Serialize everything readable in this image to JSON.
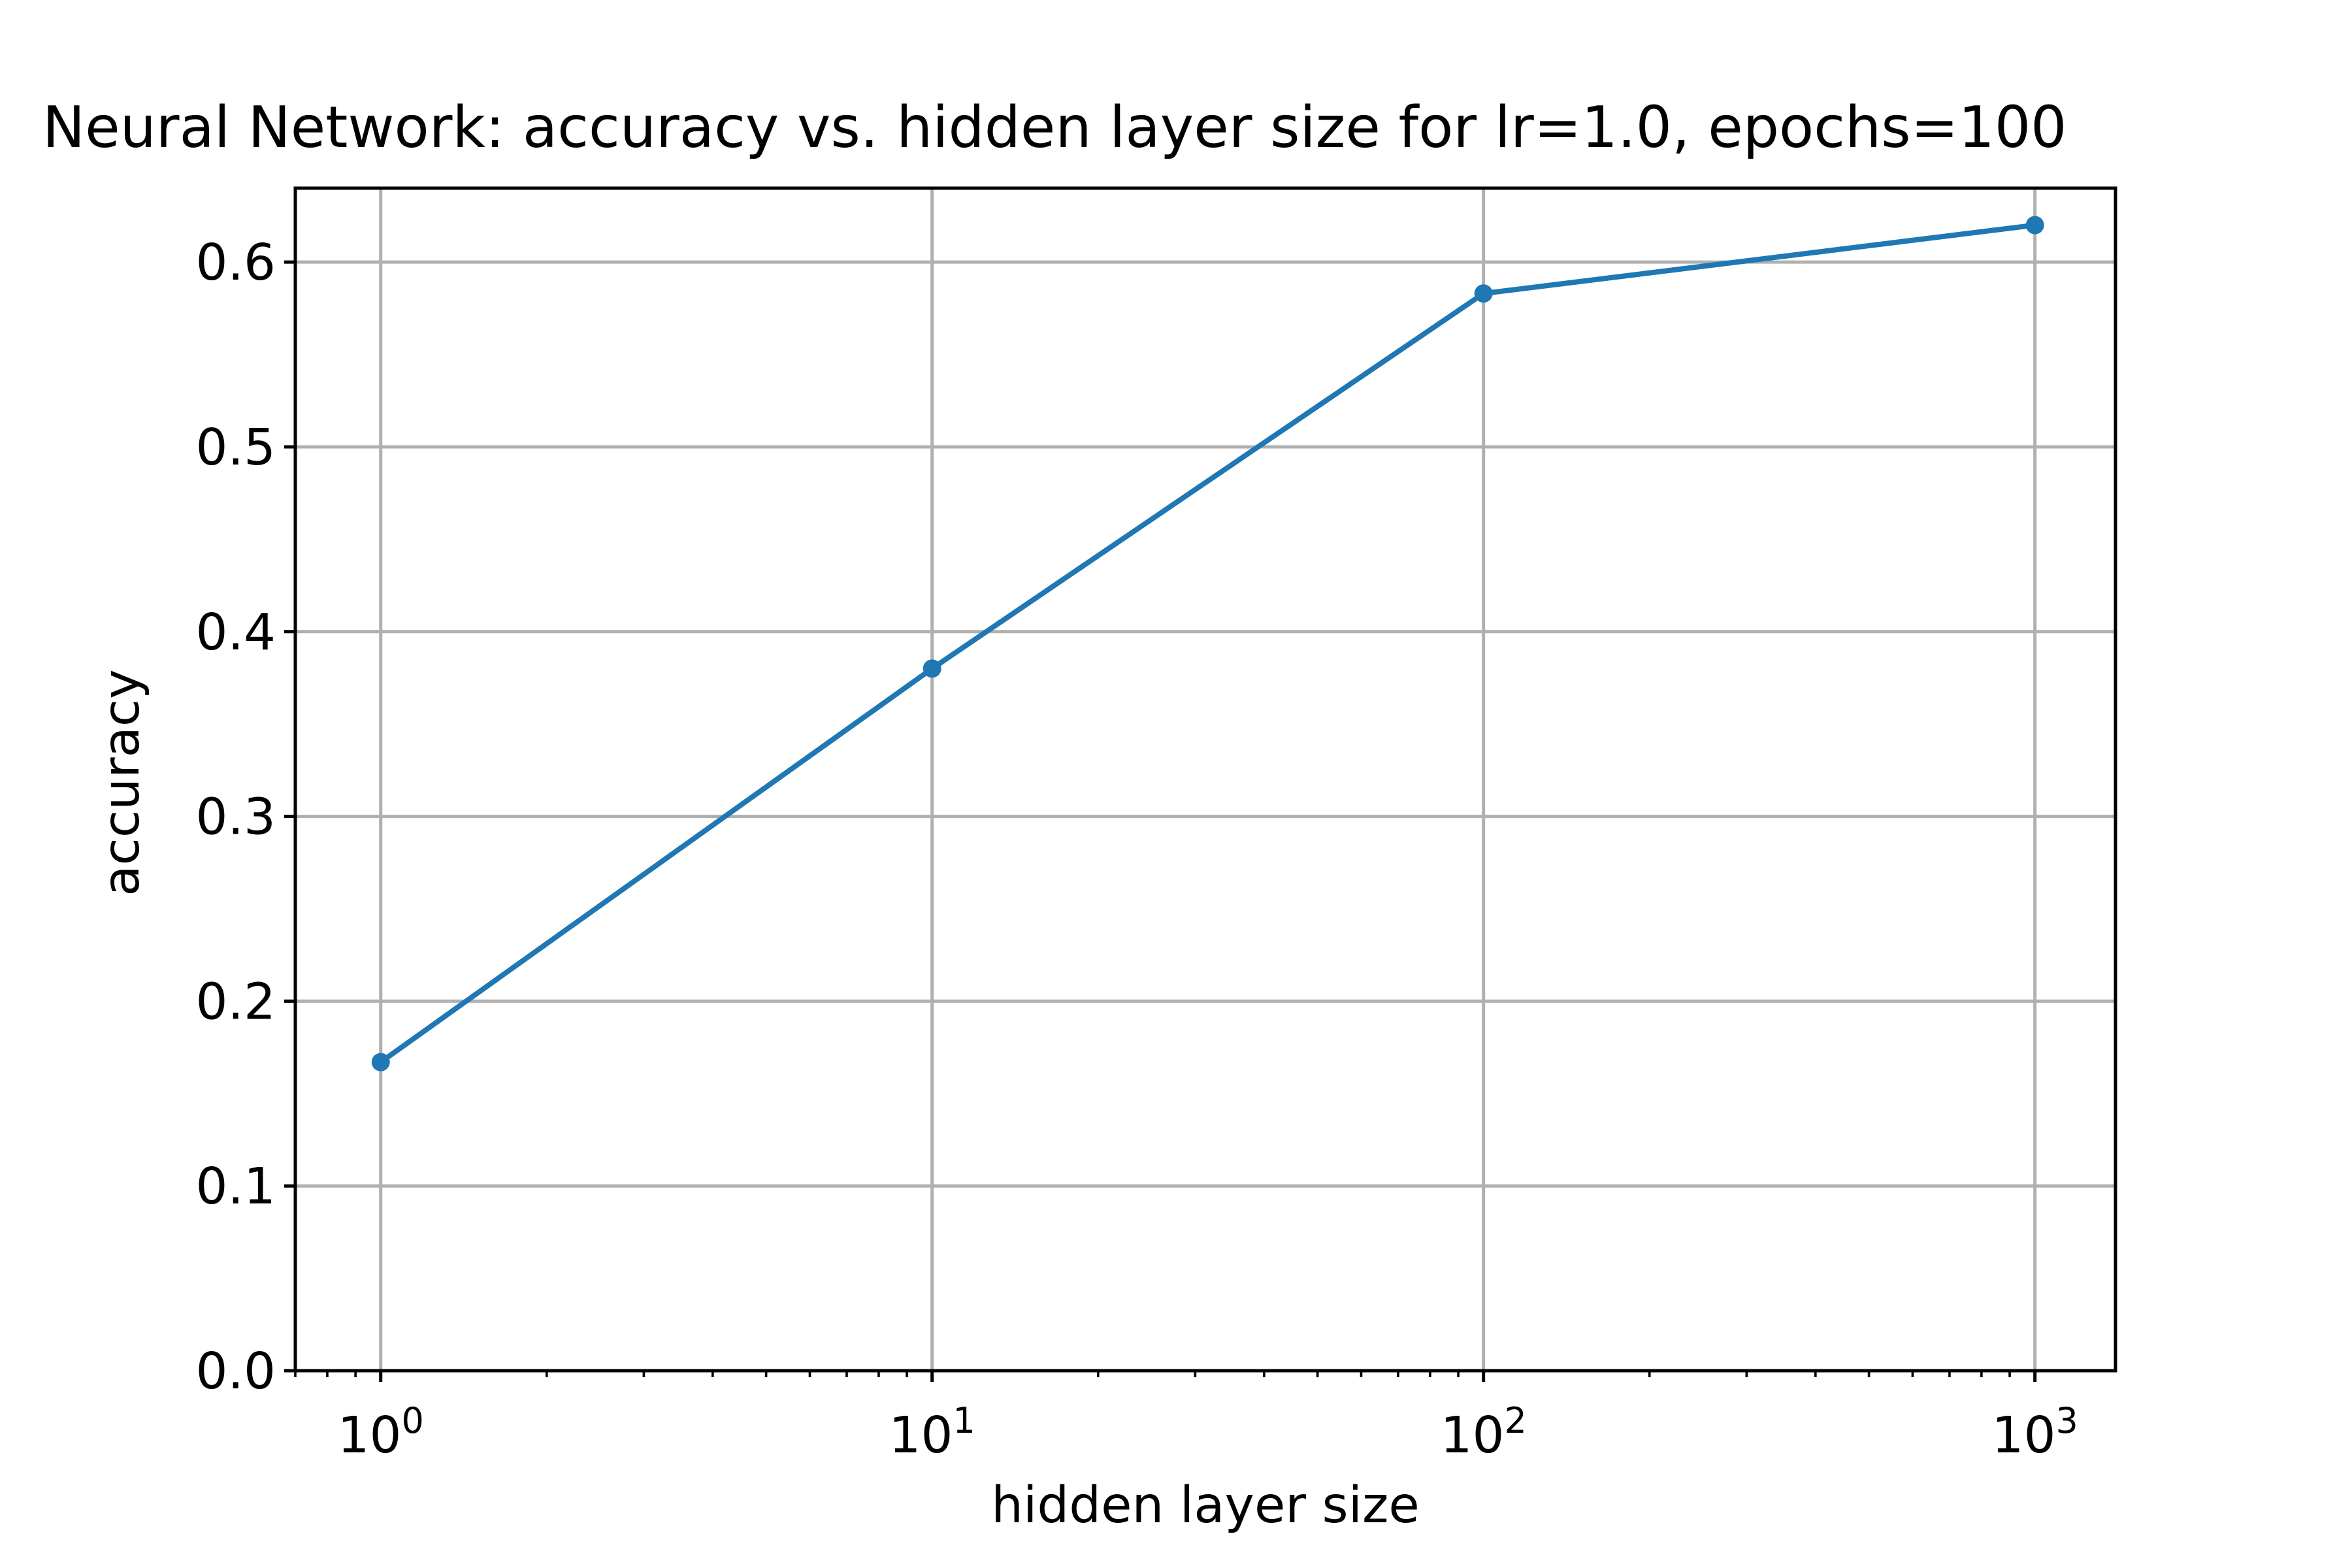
{
  "chart_data": {
    "type": "line",
    "title": "Neural Network: accuracy vs. hidden layer size for lr=1.0, epochs=100",
    "xlabel": "hidden layer size",
    "ylabel": "accuracy",
    "xscale": "log",
    "xlim": [
      0.7,
      1400
    ],
    "ylim": [
      0.0,
      0.64
    ],
    "grid": true,
    "x_ticks": [
      {
        "value": 1,
        "base": "10",
        "exp": "0"
      },
      {
        "value": 10,
        "base": "10",
        "exp": "1"
      },
      {
        "value": 100,
        "base": "10",
        "exp": "2"
      },
      {
        "value": 1000,
        "base": "10",
        "exp": "3"
      }
    ],
    "y_ticks": [
      0.0,
      0.1,
      0.2,
      0.3,
      0.4,
      0.5,
      0.6
    ],
    "y_tick_labels": [
      "0.0",
      "0.1",
      "0.2",
      "0.3",
      "0.4",
      "0.5",
      "0.6"
    ],
    "series": [
      {
        "x": [
          1,
          10,
          100,
          1000
        ],
        "values": [
          0.167,
          0.38,
          0.583,
          0.62
        ],
        "color": "#1f77b4",
        "marker": "circle"
      }
    ]
  }
}
